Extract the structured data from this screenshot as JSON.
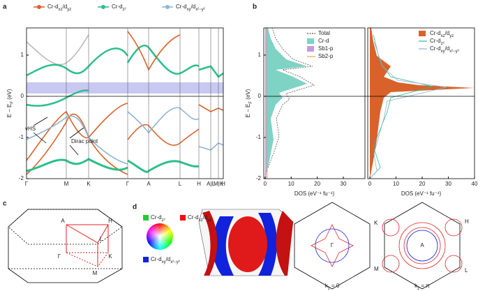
{
  "panel_a": {
    "label": "a",
    "legend": [
      {
        "color": "#d9622b",
        "parts": [
          "Cr-d",
          "xz",
          "/d",
          "yz"
        ]
      },
      {
        "color": "#2bbf8a",
        "parts": [
          "Cr-d",
          "z²"
        ]
      },
      {
        "color": "#8fb4d6",
        "parts": [
          "Cr-d",
          "xy",
          "/d",
          "x²−y²"
        ]
      }
    ],
    "ylabel": [
      "E − E",
      "F",
      " (eV)"
    ],
    "ylim": [
      -2,
      1.66
    ],
    "yticks": [
      -2,
      -1,
      0,
      1
    ],
    "kpoints": [
      "Γ",
      "M",
      "K",
      "Γ",
      "A",
      "L",
      "H",
      "A|L",
      "M|K",
      "H"
    ],
    "annotations": [
      "vHS",
      "Dirac point"
    ]
  },
  "panel_b": {
    "label": "b",
    "ylabel": [
      "E − E",
      "F",
      " (eV)"
    ],
    "yticks": [
      -2,
      -1,
      0,
      1
    ],
    "left": {
      "legend": [
        {
          "color": "#555555",
          "style": "dashed",
          "parts": [
            "Total"
          ]
        },
        {
          "color": "#7fd3c4",
          "style": "box",
          "parts": [
            "Cr-d"
          ]
        },
        {
          "color": "#c49be0",
          "style": "box",
          "parts": [
            "Sb1-p"
          ]
        },
        {
          "color": "#f0a05a",
          "style": "line",
          "parts": [
            "Sb2-p"
          ]
        }
      ],
      "xlim": [
        -0.5,
        38.3
      ],
      "xticks": [
        0,
        10,
        20,
        30
      ],
      "xlabel": "DOS (eV⁻¹ fu⁻¹)"
    },
    "right": {
      "legend": [
        {
          "color": "#d9622b",
          "style": "box",
          "parts": [
            "Cr-d",
            "xz",
            "/d",
            "yz"
          ]
        },
        {
          "color": "#2bbf8a",
          "style": "line",
          "parts": [
            "Cr-d",
            "z²"
          ]
        },
        {
          "color": "#8fb4d6",
          "style": "line",
          "parts": [
            "Cr-d",
            "xy",
            "/d",
            "x²−y²"
          ]
        }
      ],
      "xlim": [
        -0.8,
        40
      ],
      "xticks": [
        0,
        10,
        20,
        30,
        40
      ],
      "xlabel": "DOS (eV⁻¹ fu⁻¹)"
    }
  },
  "panel_c": {
    "label": "c",
    "points": [
      "A",
      "H",
      "L",
      "Γ",
      "K",
      "M"
    ]
  },
  "panel_d": {
    "label": "d",
    "legend": [
      {
        "color": "#22cc33",
        "parts": [
          "Cr-d",
          "z²"
        ]
      },
      {
        "color": "#ee1111",
        "parts": [
          "Cr-d",
          "xz",
          "/d",
          "yz"
        ]
      },
      {
        "color": "#1122dd",
        "parts": [
          "Cr-d",
          "xy",
          "/d",
          "x²−y²"
        ]
      }
    ],
    "slice1": {
      "points": [
        "Γ",
        "K",
        "M"
      ],
      "kz": [
        "k",
        "z",
        " = 0"
      ]
    },
    "slice2": {
      "points": [
        "A",
        "H",
        "L"
      ],
      "kz": [
        "k",
        "z",
        " = π"
      ]
    }
  }
}
